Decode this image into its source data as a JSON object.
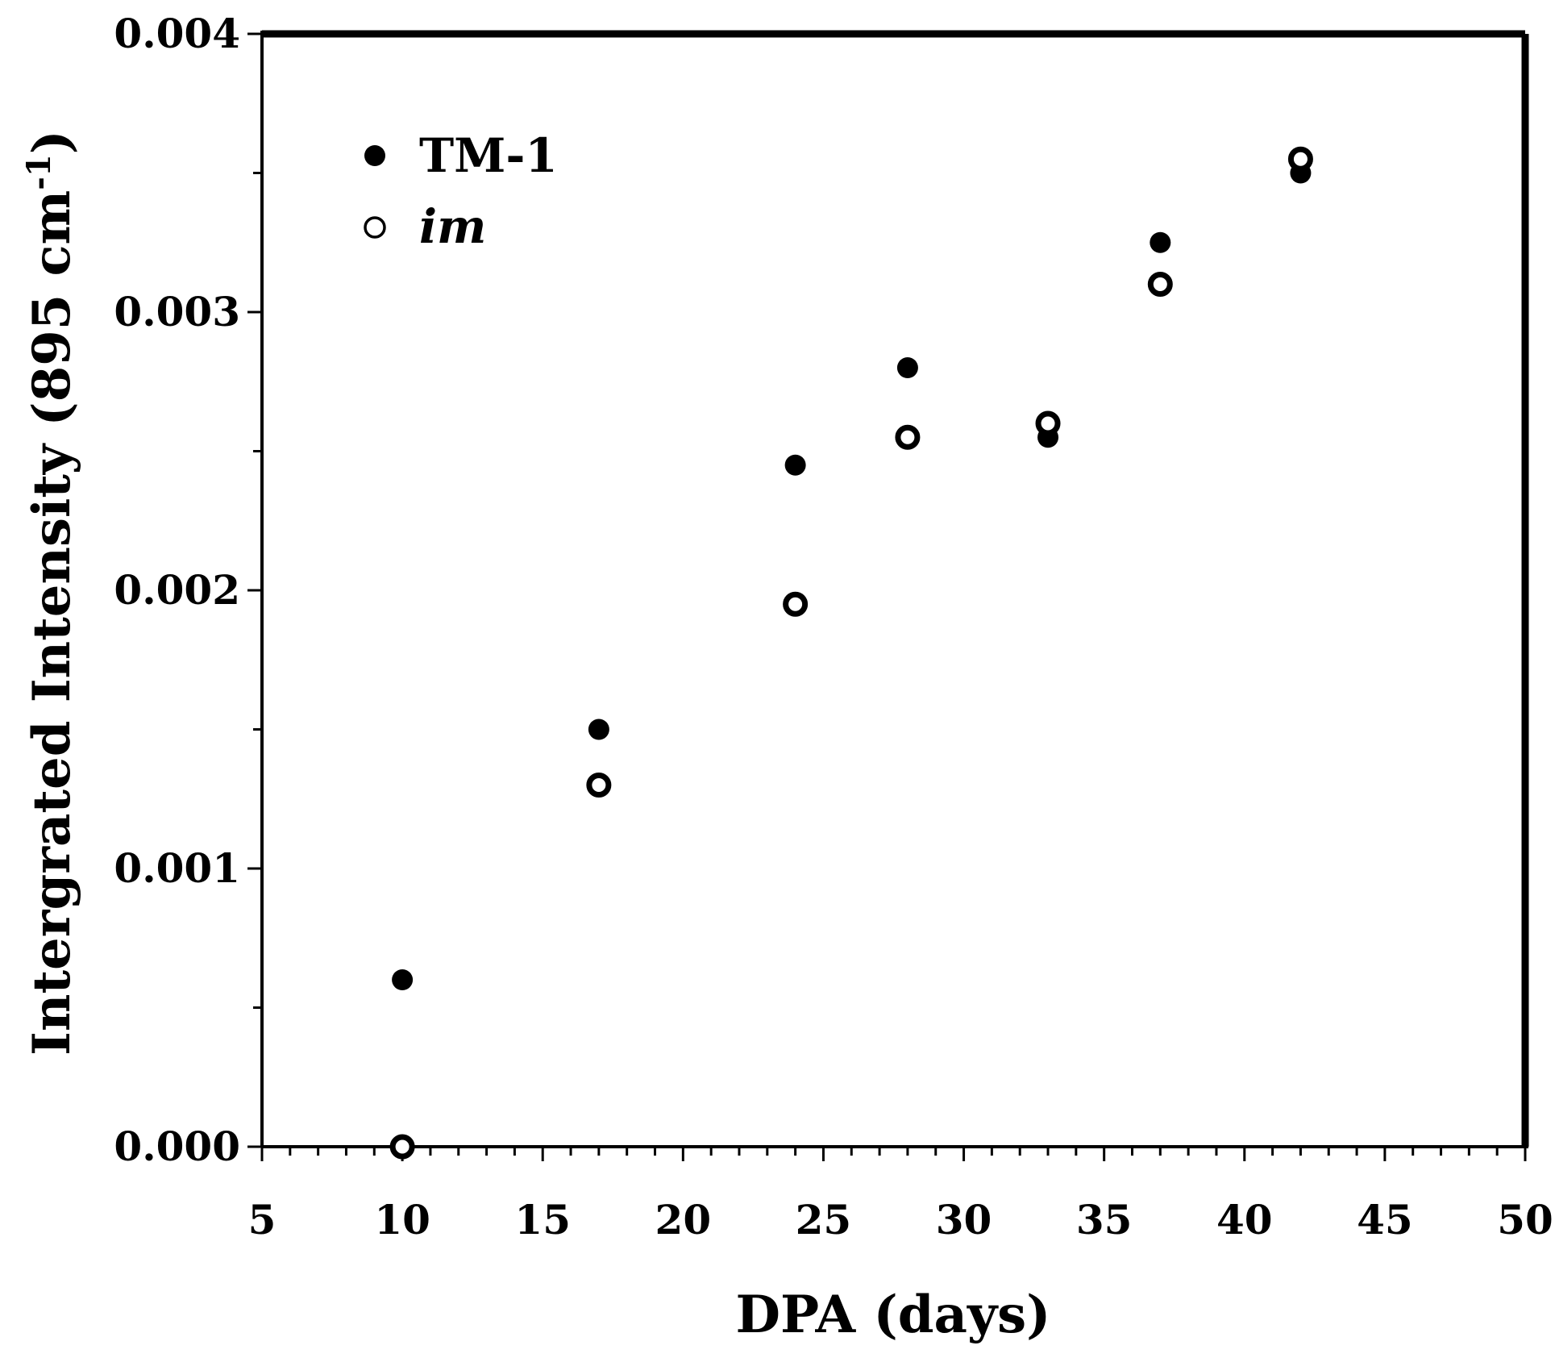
{
  "chart_data": {
    "type": "scatter",
    "title": "",
    "xlabel": "DPA (days)",
    "ylabel": {
      "main": "Intergrated Intensity (895 cm",
      "superscript": "-1",
      "close": ")"
    },
    "xlim": [
      5,
      50
    ],
    "ylim": [
      0,
      0.004
    ],
    "x_ticks": [
      "5",
      "10",
      "15",
      "20",
      "25",
      "30",
      "35",
      "40",
      "45",
      "50"
    ],
    "x_tick_values": [
      5,
      10,
      15,
      20,
      25,
      30,
      35,
      40,
      45,
      50
    ],
    "y_ticks": [
      "0.000",
      "0.001",
      "0.002",
      "0.003",
      "0.004"
    ],
    "y_tick_values": [
      0,
      0.001,
      0.002,
      0.003,
      0.004
    ],
    "legend_position": "top-left",
    "series": [
      {
        "name": "TM-1",
        "marker": "filled-circle",
        "italic": false,
        "x": [
          10,
          17,
          24,
          28,
          33,
          37,
          42
        ],
        "y": [
          0.0006,
          0.0015,
          0.00245,
          0.0028,
          0.00255,
          0.00325,
          0.0035
        ]
      },
      {
        "name": "im",
        "marker": "open-circle",
        "italic": true,
        "x": [
          10,
          17,
          24,
          28,
          33,
          37,
          42
        ],
        "y": [
          0.0,
          0.0013,
          0.00195,
          0.00255,
          0.0026,
          0.0031,
          0.00355
        ]
      }
    ],
    "colors": {
      "marker": "#000000",
      "axis": "#000000",
      "frame": "#000000",
      "background": "#ffffff"
    }
  }
}
